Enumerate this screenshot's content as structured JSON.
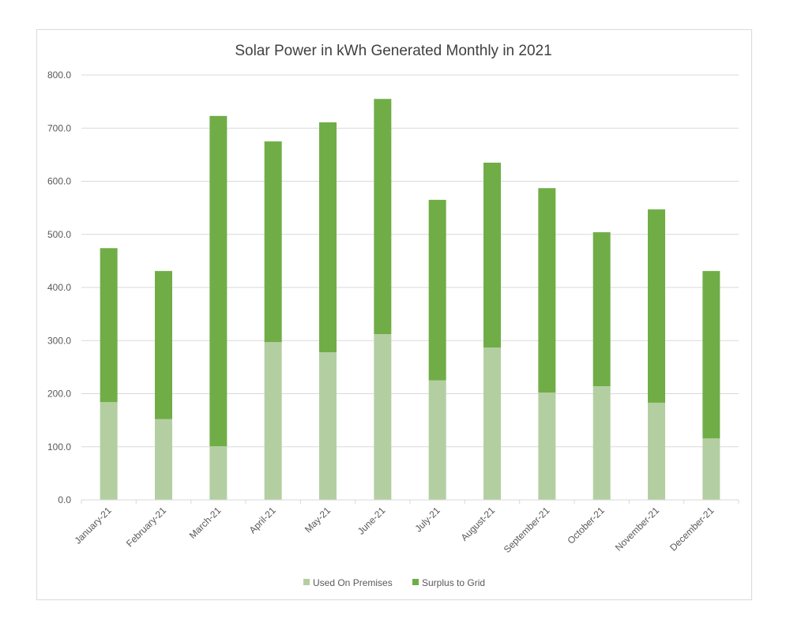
{
  "chart_data": {
    "type": "bar",
    "stacked": true,
    "title": "Solar Power in kWh Generated Monthly in 2021",
    "xlabel": "",
    "ylabel": "",
    "ylim": [
      0,
      800
    ],
    "yticks": [
      "0.0",
      "100.0",
      "200.0",
      "300.0",
      "400.0",
      "500.0",
      "600.0",
      "700.0",
      "800.0"
    ],
    "grid": true,
    "legend_position": "bottom",
    "categories": [
      "January-21",
      "February-21",
      "March-21",
      "April-21",
      "May-21",
      "June-21",
      "July-21",
      "August-21",
      "September-21",
      "October-21",
      "November-21",
      "December-21"
    ],
    "series": [
      {
        "name": "Used On Premises",
        "color": "#B3CFA2",
        "values": [
          184,
          152,
          101,
          297,
          278,
          312,
          225,
          287,
          202,
          214,
          183,
          116
        ]
      },
      {
        "name": "Surplus to Grid",
        "color": "#70AD47",
        "values": [
          290,
          279,
          622,
          378,
          433,
          443,
          340,
          348,
          385,
          290,
          364,
          315
        ]
      }
    ]
  }
}
